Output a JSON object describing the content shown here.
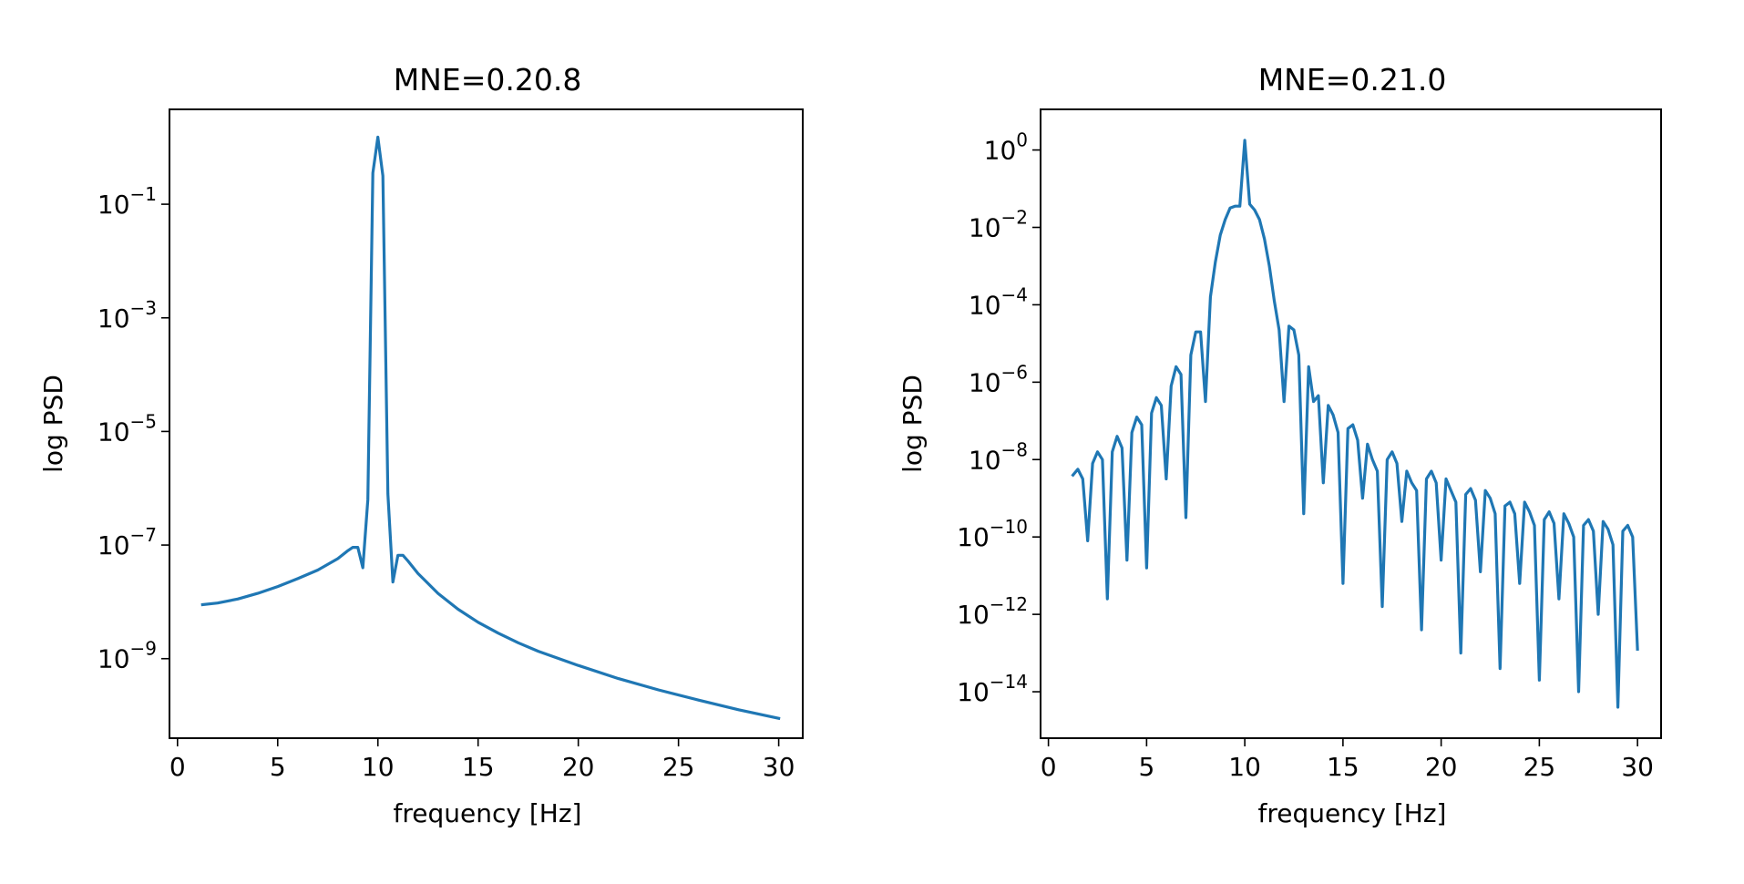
{
  "chart_data": [
    {
      "type": "line",
      "title": "MNE=0.20.8",
      "xlabel": "frequency [Hz]",
      "ylabel": "log PSD",
      "yscale": "log",
      "xlim": [
        -0.4,
        31.2
      ],
      "ylim_log10": [
        -10.4,
        0.67
      ],
      "xticks": [
        0,
        5,
        10,
        15,
        20,
        25,
        30
      ],
      "xtick_labels": [
        "0",
        "5",
        "10",
        "15",
        "20",
        "25",
        "30"
      ],
      "yticks_log10": [
        -1,
        -3,
        -5,
        -7,
        -9
      ],
      "ytick_labels": [
        {
          "base": "10",
          "exp": "−1"
        },
        {
          "base": "10",
          "exp": "−3"
        },
        {
          "base": "10",
          "exp": "−5"
        },
        {
          "base": "10",
          "exp": "−7"
        },
        {
          "base": "10",
          "exp": "−9"
        }
      ],
      "series": [
        {
          "name": "PSD",
          "color": "#1f77b4",
          "x": [
            1.25,
            2,
            3,
            4,
            5,
            6,
            7,
            8,
            8.5,
            8.75,
            9,
            9.25,
            9.5,
            9.75,
            10,
            10.25,
            10.5,
            10.75,
            11,
            11.25,
            11.5,
            12,
            13,
            14,
            15,
            16,
            17,
            18,
            20,
            22,
            24,
            26,
            28,
            30
          ],
          "log10_y": [
            -8.05,
            -8.02,
            -7.95,
            -7.85,
            -7.73,
            -7.59,
            -7.44,
            -7.24,
            -7.1,
            -7.04,
            -7.04,
            -7.4,
            -6.2,
            -0.45,
            0.18,
            -0.5,
            -6.1,
            -7.65,
            -7.18,
            -7.18,
            -7.28,
            -7.5,
            -7.85,
            -8.13,
            -8.36,
            -8.55,
            -8.72,
            -8.87,
            -9.12,
            -9.35,
            -9.55,
            -9.73,
            -9.9,
            -10.05
          ]
        }
      ]
    },
    {
      "type": "line",
      "title": "MNE=0.21.0",
      "xlabel": "frequency [Hz]",
      "ylabel": "log PSD",
      "yscale": "log",
      "xlim": [
        -0.4,
        31.2
      ],
      "ylim_log10": [
        -15.2,
        1.05
      ],
      "xticks": [
        0,
        5,
        10,
        15,
        20,
        25,
        30
      ],
      "xtick_labels": [
        "0",
        "5",
        "10",
        "15",
        "20",
        "25",
        "30"
      ],
      "yticks_log10": [
        0,
        -2,
        -4,
        -6,
        -8,
        -10,
        -12,
        -14
      ],
      "ytick_labels": [
        {
          "base": "10",
          "exp": "0"
        },
        {
          "base": "10",
          "exp": "−2"
        },
        {
          "base": "10",
          "exp": "−4"
        },
        {
          "base": "10",
          "exp": "−6"
        },
        {
          "base": "10",
          "exp": "−8"
        },
        {
          "base": "10",
          "exp": "−10"
        },
        {
          "base": "10",
          "exp": "−12"
        },
        {
          "base": "10",
          "exp": "−14"
        }
      ],
      "series": [
        {
          "name": "PSD",
          "color": "#1f77b4",
          "x": [
            1.25,
            1.5,
            1.75,
            2,
            2.25,
            2.5,
            2.75,
            3,
            3.25,
            3.5,
            3.75,
            4,
            4.25,
            4.5,
            4.75,
            5,
            5.25,
            5.5,
            5.75,
            6,
            6.25,
            6.5,
            6.75,
            7,
            7.25,
            7.5,
            7.75,
            8,
            8.25,
            8.5,
            8.75,
            9,
            9.25,
            9.5,
            9.75,
            10,
            10.25,
            10.5,
            10.75,
            11,
            11.25,
            11.5,
            11.75,
            12,
            12.25,
            12.5,
            12.75,
            13,
            13.25,
            13.5,
            13.75,
            14,
            14.25,
            14.5,
            14.75,
            15,
            15.25,
            15.5,
            15.75,
            16,
            16.25,
            16.5,
            16.75,
            17,
            17.25,
            17.5,
            17.75,
            18,
            18.25,
            18.5,
            18.75,
            19,
            19.25,
            19.5,
            19.75,
            20,
            20.25,
            20.5,
            20.75,
            21,
            21.25,
            21.5,
            21.75,
            22,
            22.25,
            22.5,
            22.75,
            23,
            23.25,
            23.5,
            23.75,
            24,
            24.25,
            24.5,
            24.75,
            25,
            25.25,
            25.5,
            25.75,
            26,
            26.25,
            26.5,
            26.75,
            27,
            27.25,
            27.5,
            27.75,
            28,
            28.25,
            28.5,
            28.75,
            29,
            29.25,
            29.5,
            29.75,
            30
          ],
          "log10_y": [
            -8.4,
            -8.25,
            -8.5,
            -10.1,
            -8.1,
            -7.8,
            -8.0,
            -11.6,
            -7.8,
            -7.4,
            -7.7,
            -10.6,
            -7.3,
            -6.9,
            -7.1,
            -10.8,
            -6.8,
            -6.4,
            -6.6,
            -8.5,
            -6.1,
            -5.6,
            -5.8,
            -9.5,
            -5.3,
            -4.7,
            -4.7,
            -6.5,
            -3.8,
            -2.9,
            -2.2,
            -1.8,
            -1.5,
            -1.45,
            -1.45,
            0.25,
            -1.4,
            -1.55,
            -1.8,
            -2.3,
            -3.0,
            -3.9,
            -4.65,
            -6.5,
            -4.55,
            -4.65,
            -5.3,
            -9.4,
            -5.6,
            -6.5,
            -6.35,
            -8.6,
            -6.6,
            -6.85,
            -7.3,
            -11.2,
            -7.2,
            -7.1,
            -7.5,
            -9.0,
            -7.6,
            -8.0,
            -8.3,
            -11.8,
            -8.0,
            -7.8,
            -8.1,
            -9.6,
            -8.3,
            -8.6,
            -8.8,
            -12.4,
            -8.5,
            -8.3,
            -8.6,
            -10.6,
            -8.5,
            -8.8,
            -9.1,
            -13.0,
            -8.9,
            -8.75,
            -9.05,
            -10.9,
            -8.8,
            -9.0,
            -9.4,
            -13.4,
            -9.2,
            -9.1,
            -9.4,
            -11.2,
            -9.1,
            -9.35,
            -9.7,
            -13.7,
            -9.55,
            -9.35,
            -9.65,
            -11.6,
            -9.4,
            -9.65,
            -10.0,
            -14.0,
            -9.7,
            -9.55,
            -9.85,
            -12.0,
            -9.6,
            -9.8,
            -10.2,
            -14.4,
            -9.85,
            -9.7,
            -10.0,
            -12.9
          ]
        }
      ]
    }
  ]
}
